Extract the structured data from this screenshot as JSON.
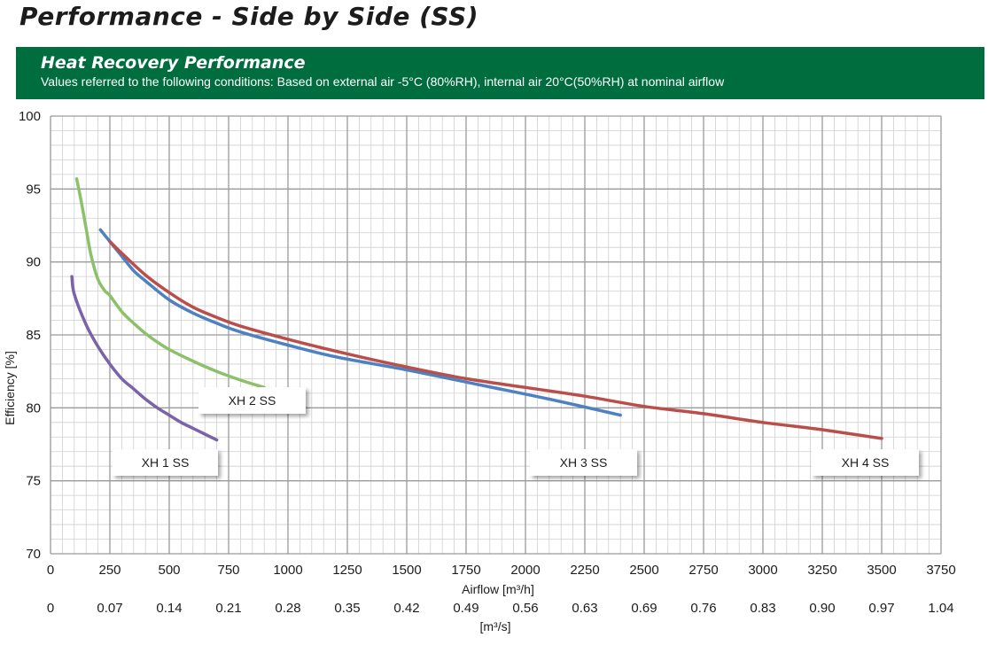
{
  "header": {
    "title": "Performance - Side by Side (SS)"
  },
  "banner": {
    "title": "Heat Recovery Performance",
    "subtitle": "Values referred to the following conditions: Based on external air -5°C (80%RH), internal air 20°C(50%RH) at nominal airflow"
  },
  "chart_data": {
    "type": "line",
    "title": "Heat Recovery Performance",
    "xlabel": "Airflow [m³/h]",
    "x2label": "[m³/s]",
    "ylabel": "Efficiency [%]",
    "xlim": [
      0,
      3750
    ],
    "ylim": [
      70,
      100
    ],
    "grid": true,
    "x_ticks": [
      "0",
      "250",
      "500",
      "750",
      "1000",
      "1250",
      "1500",
      "1750",
      "2000",
      "2250",
      "2500",
      "2750",
      "3000",
      "3250",
      "3500",
      "3750"
    ],
    "x2_ticks": [
      "0",
      "0.07",
      "0.14",
      "0.21",
      "0.28",
      "0.35",
      "0.42",
      "0.49",
      "0.56",
      "0.63",
      "0.69",
      "0.76",
      "0.83",
      "0.90",
      "0.97",
      "1.04"
    ],
    "y_ticks": [
      "70",
      "75",
      "80",
      "85",
      "90",
      "95",
      "100"
    ],
    "series": [
      {
        "name": "XH 1 SS",
        "color": "#7a63a8",
        "x": [
          90,
          100,
          150,
          200,
          250,
          300,
          350,
          400,
          450,
          500,
          550,
          600,
          650,
          700
        ],
        "y": [
          89.0,
          87.8,
          85.7,
          84.2,
          83.0,
          82.0,
          81.3,
          80.6,
          80.0,
          79.5,
          79.0,
          78.6,
          78.2,
          77.8
        ]
      },
      {
        "name": "XH 2 SS",
        "color": "#8cc069",
        "x": [
          110,
          130,
          150,
          170,
          200,
          230,
          250,
          300,
          350,
          400,
          450,
          500,
          600,
          700,
          800,
          900
        ],
        "y": [
          95.7,
          94.1,
          92.3,
          90.5,
          88.8,
          88.0,
          87.7,
          86.6,
          85.8,
          85.1,
          84.5,
          84.0,
          83.2,
          82.5,
          81.9,
          81.4
        ]
      },
      {
        "name": "XH 3 SS",
        "color": "#4d81c2",
        "x": [
          210,
          250,
          300,
          350,
          400,
          500,
          600,
          700,
          800,
          1000,
          1200,
          1500,
          1800,
          2100,
          2400
        ],
        "y": [
          92.2,
          91.4,
          90.4,
          89.4,
          88.7,
          87.4,
          86.5,
          85.8,
          85.2,
          84.3,
          83.5,
          82.6,
          81.6,
          80.6,
          79.5
        ]
      },
      {
        "name": "XH 4 SS",
        "color": "#b94e4b",
        "x": [
          250,
          300,
          400,
          500,
          600,
          700,
          800,
          1000,
          1250,
          1500,
          1750,
          2000,
          2250,
          2500,
          2750,
          3000,
          3250,
          3500
        ],
        "y": [
          91.4,
          90.6,
          89.1,
          87.9,
          86.9,
          86.2,
          85.6,
          84.7,
          83.7,
          82.8,
          82.0,
          81.4,
          80.8,
          80.1,
          79.6,
          79.0,
          78.5,
          77.9
        ]
      }
    ]
  }
}
